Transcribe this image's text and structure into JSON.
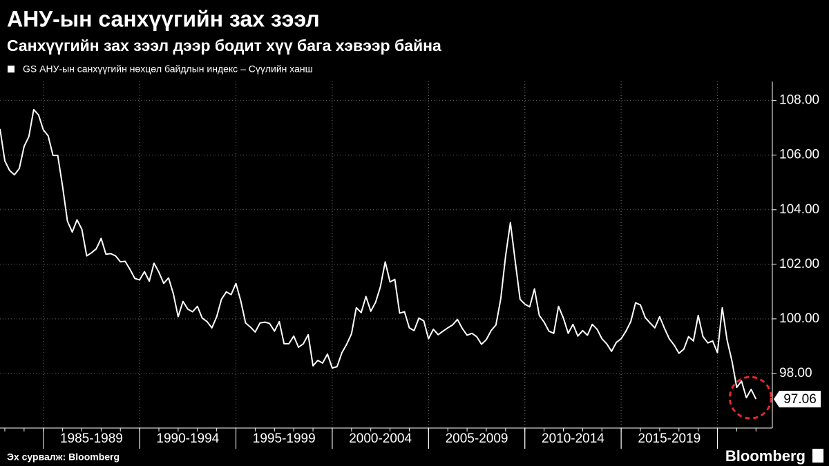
{
  "chart_data": {
    "type": "line",
    "title": "АНУ-ын санхүүгийн зах зээл",
    "subtitle": "Санхүүгийн зах зээл дээр бодит хүү бага хэвээр байна",
    "source": "Эх сурвалж: Bloomberg",
    "brand": "Bloomberg",
    "x": [
      1982.75,
      1983,
      1983.25,
      1983.5,
      1983.75,
      1984,
      1984.25,
      1984.5,
      1984.75,
      1985,
      1985.25,
      1985.5,
      1985.75,
      1986,
      1986.25,
      1986.5,
      1986.75,
      1987,
      1987.25,
      1987.5,
      1987.75,
      1988,
      1988.25,
      1988.5,
      1988.75,
      1989,
      1989.25,
      1989.5,
      1989.75,
      1990,
      1990.25,
      1990.5,
      1990.75,
      1991,
      1991.25,
      1991.5,
      1991.75,
      1992,
      1992.25,
      1992.5,
      1992.75,
      1993,
      1993.25,
      1993.5,
      1993.75,
      1994,
      1994.25,
      1994.5,
      1994.75,
      1995,
      1995.25,
      1995.5,
      1995.75,
      1996,
      1996.25,
      1996.5,
      1996.75,
      1997,
      1997.25,
      1997.5,
      1997.75,
      1998,
      1998.25,
      1998.5,
      1998.75,
      1999,
      1999.25,
      1999.5,
      1999.75,
      2000,
      2000.25,
      2000.5,
      2000.75,
      2001,
      2001.25,
      2001.5,
      2001.75,
      2002,
      2002.25,
      2002.5,
      2002.75,
      2003,
      2003.25,
      2003.5,
      2003.75,
      2004,
      2004.25,
      2004.5,
      2004.75,
      2005,
      2005.25,
      2005.5,
      2005.75,
      2006,
      2006.25,
      2006.5,
      2006.75,
      2007,
      2007.25,
      2007.5,
      2007.75,
      2008,
      2008.25,
      2008.5,
      2008.75,
      2009,
      2009.25,
      2009.5,
      2009.75,
      2010,
      2010.25,
      2010.5,
      2010.75,
      2011,
      2011.25,
      2011.5,
      2011.75,
      2012,
      2012.25,
      2012.5,
      2012.75,
      2013,
      2013.25,
      2013.5,
      2013.75,
      2014,
      2014.25,
      2014.5,
      2014.75,
      2015,
      2015.25,
      2015.5,
      2015.75,
      2016,
      2016.25,
      2016.5,
      2016.75,
      2017,
      2017.25,
      2017.5,
      2017.75,
      2018,
      2018.25,
      2018.5,
      2018.75,
      2019,
      2019.25,
      2019.5,
      2019.75,
      2020,
      2020.25,
      2020.5,
      2020.75,
      2021,
      2021.25,
      2021.5,
      2021.75,
      2022
    ],
    "series": [
      {
        "name": "GS АНУ-ын санхүүгийн нөхцөл байдлын индекс – Сүүлийн ханш",
        "color": "#ffffff",
        "values": [
          106.96,
          105.79,
          105.44,
          105.28,
          105.51,
          106.32,
          106.68,
          107.67,
          107.47,
          106.93,
          106.71,
          105.99,
          105.99,
          104.85,
          103.58,
          103.18,
          103.63,
          103.28,
          102.31,
          102.42,
          102.57,
          102.95,
          102.37,
          102.39,
          102.31,
          102.09,
          102.11,
          101.81,
          101.48,
          101.43,
          101.73,
          101.38,
          102.04,
          101.71,
          101.3,
          101.5,
          100.92,
          100.08,
          100.64,
          100.36,
          100.26,
          100.46,
          100.03,
          99.9,
          99.67,
          100.08,
          100.72,
          100.99,
          100.89,
          101.3,
          100.66,
          99.85,
          99.7,
          99.52,
          99.85,
          99.88,
          99.83,
          99.55,
          99.9,
          99.09,
          99.09,
          99.37,
          98.96,
          99.09,
          99.42,
          98.28,
          98.48,
          98.38,
          98.71,
          98.2,
          98.25,
          98.76,
          99.07,
          99.45,
          100.41,
          100.23,
          100.82,
          100.28,
          100.61,
          101.17,
          102.09,
          101.35,
          101.45,
          100.21,
          100.26,
          99.67,
          99.57,
          100.03,
          99.93,
          99.27,
          99.62,
          99.42,
          99.55,
          99.67,
          99.78,
          99.98,
          99.65,
          99.4,
          99.47,
          99.35,
          99.07,
          99.24,
          99.57,
          99.78,
          100.74,
          102.31,
          103.53,
          102.11,
          100.72,
          100.54,
          100.44,
          101.1,
          100.13,
          99.88,
          99.55,
          99.47,
          100.46,
          100.03,
          99.47,
          99.8,
          99.37,
          99.57,
          99.4,
          99.8,
          99.62,
          99.27,
          99.09,
          98.81,
          99.14,
          99.27,
          99.55,
          99.9,
          100.59,
          100.51,
          100.05,
          99.85,
          99.67,
          100.08,
          99.65,
          99.27,
          99.04,
          98.74,
          98.89,
          99.35,
          99.19,
          100.13,
          99.35,
          99.12,
          99.19,
          98.76,
          100.41,
          99.22,
          98.46,
          97.49,
          97.72,
          97.11,
          97.42,
          97.06
        ]
      }
    ],
    "xlim": [
      1982.75,
      2022.85
    ],
    "xticks": [
      {
        "value": 1987.5,
        "label": "1985-1989"
      },
      {
        "value": 1992.5,
        "label": "1990-1994"
      },
      {
        "value": 1997.5,
        "label": "1995-1999"
      },
      {
        "value": 2002.5,
        "label": "2000-2004"
      },
      {
        "value": 2007.5,
        "label": "2005-2009"
      },
      {
        "value": 2012.5,
        "label": "2010-2014"
      },
      {
        "value": 2017.5,
        "label": "2015-2019"
      }
    ],
    "ylim": [
      96,
      108.7
    ],
    "yticks": [
      {
        "value": 98,
        "label": "98.00"
      },
      {
        "value": 100,
        "label": "100.00"
      },
      {
        "value": 102,
        "label": "102.00"
      },
      {
        "value": 104,
        "label": "104.00"
      },
      {
        "value": 106,
        "label": "106.00"
      },
      {
        "value": 108,
        "label": "108.00"
      }
    ],
    "grid": true,
    "highlight_color": "#e8262b"
  }
}
